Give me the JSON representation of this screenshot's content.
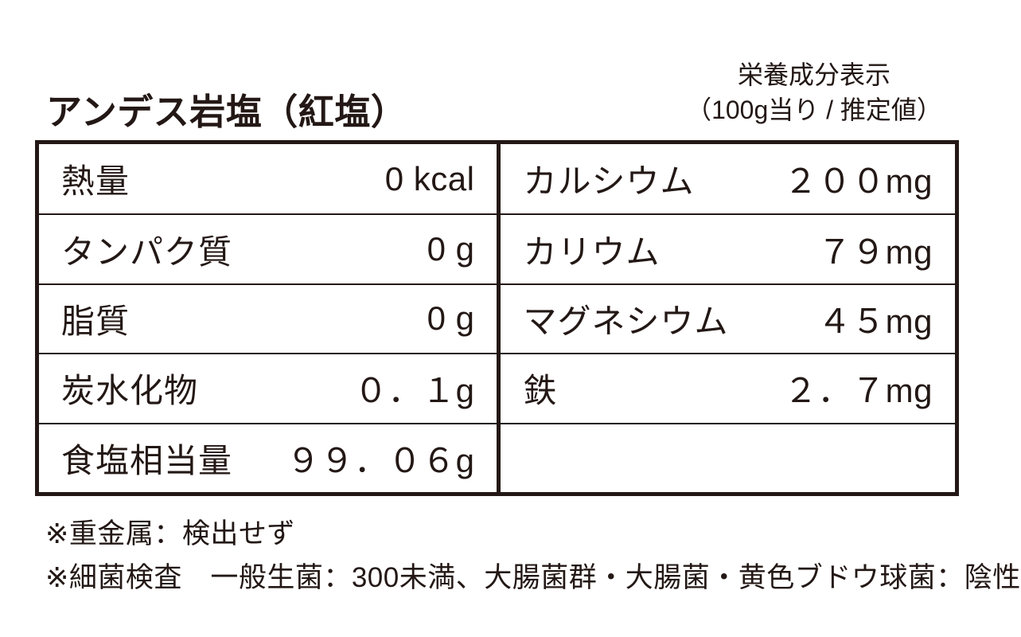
{
  "page": {
    "background_color": "#ffffff",
    "ink_color": "#231815"
  },
  "title": "アンデス岩塩（紅塩）",
  "header": {
    "line1": "栄養成分表示",
    "line2": "（100g当り / 推定値）"
  },
  "table": {
    "left_rows": [
      {
        "label": "熱量",
        "value": "0 kcal"
      },
      {
        "label": "タンパク質",
        "value": "0 g"
      },
      {
        "label": "脂質",
        "value": "0 g"
      },
      {
        "label": "炭水化物",
        "value": "０．１g"
      },
      {
        "label": "食塩相当量",
        "value": "９９．０６g"
      }
    ],
    "right_rows": [
      {
        "label": "カルシウム",
        "value": "２００mg"
      },
      {
        "label": "カリウム",
        "value": "７９mg"
      },
      {
        "label": "マグネシウム",
        "value": "４５mg"
      },
      {
        "label": "鉄",
        "value": "２．７mg"
      },
      {
        "label": "",
        "value": ""
      }
    ]
  },
  "notes": [
    "※重金属：検出せず",
    "※細菌検査　一般生菌：300未満、大腸菌群・大腸菌・黄色ブドウ球菌：陰性"
  ]
}
